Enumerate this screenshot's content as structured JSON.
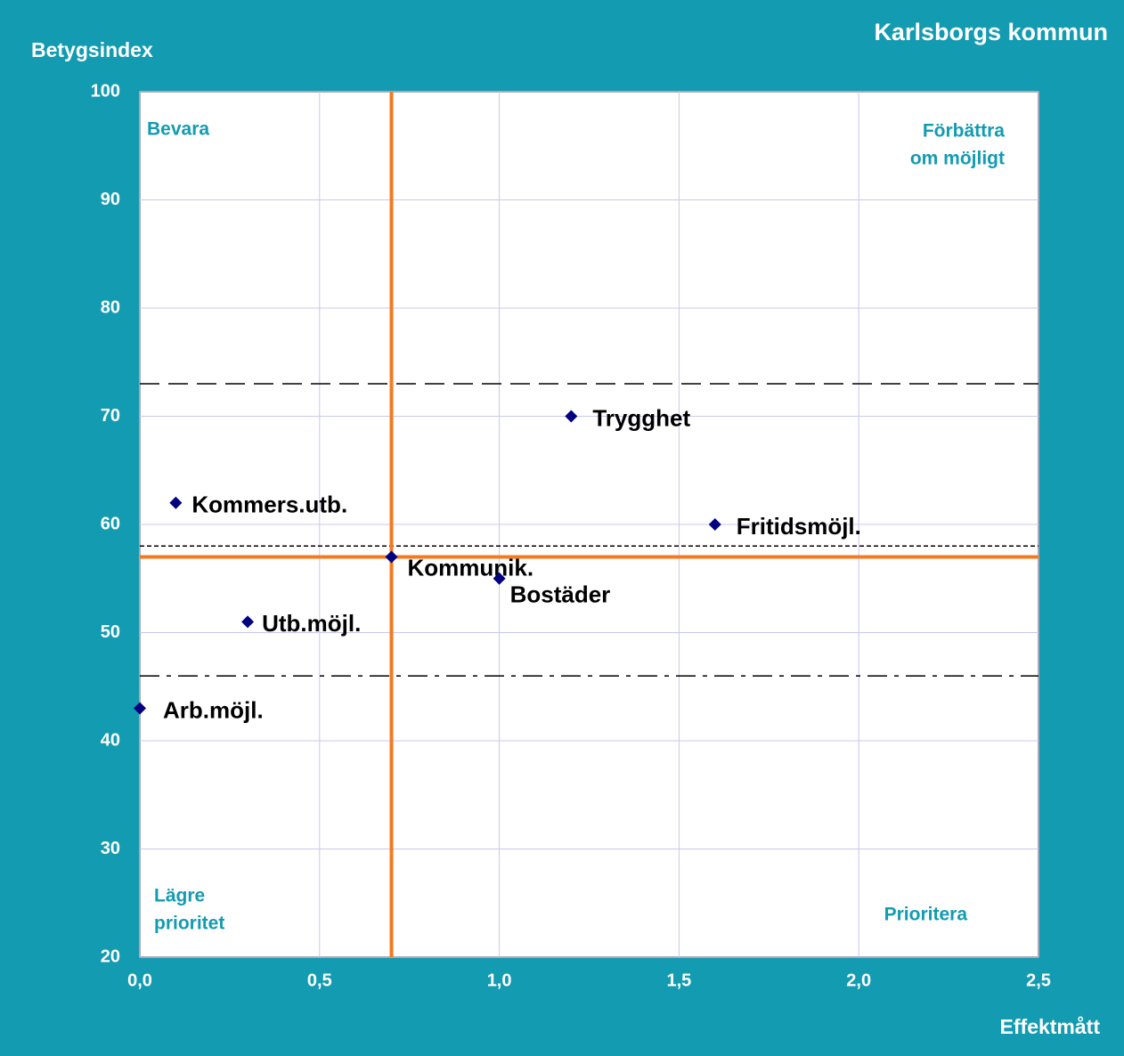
{
  "chart_data": {
    "type": "scatter",
    "title": "Karlsborgs kommun",
    "y_label": "Betygsindex",
    "x_label": "Effektmått",
    "labels": [
      "Arb.möjl.",
      "Kommers.utb.",
      "Utb.möjl.",
      "Kommunik.",
      "Bostäder",
      "Trygghet",
      "Fritidsmöjl."
    ],
    "x": [
      0.0,
      0.1,
      0.3,
      0.7,
      1.0,
      1.2,
      1.6
    ],
    "values": [
      43,
      62,
      51,
      57,
      55,
      70,
      60
    ],
    "color": "#000080",
    "xlim": [
      0,
      2.5
    ],
    "ylim": [
      20,
      100
    ],
    "xticks": [
      {
        "value": 0,
        "label": "0,0"
      },
      {
        "value": 0.5,
        "label": "0,5"
      },
      {
        "value": 1,
        "label": "1,0"
      },
      {
        "value": 1.5,
        "label": "1,5"
      },
      {
        "value": 2,
        "label": "2,0"
      },
      {
        "value": 2.5,
        "label": "2,5"
      }
    ],
    "yticks": [
      20,
      30,
      40,
      50,
      60,
      70,
      80,
      90,
      100
    ],
    "grid": true,
    "reference_lines": [
      {
        "axis": "y",
        "value": 73,
        "color": "#000000",
        "style": "dashed"
      },
      {
        "axis": "y",
        "value": 58,
        "color": "#000000",
        "style": "dotted"
      },
      {
        "axis": "y",
        "value": 46,
        "color": "#000000",
        "style": "dashdot"
      },
      {
        "axis": "x",
        "value": 0.7,
        "color": "#f47a20",
        "style": "solid"
      },
      {
        "axis": "y",
        "value": 57,
        "color": "#f47a20",
        "style": "solid"
      }
    ],
    "annotations": [
      {
        "corner": "top-left",
        "lines": [
          "Bevara"
        ]
      },
      {
        "corner": "top-right",
        "lines": [
          "Förbättra",
          "om möjligt"
        ]
      },
      {
        "corner": "bottom-left",
        "lines": [
          "Lägre",
          "prioritet"
        ]
      },
      {
        "corner": "bottom-right",
        "lines": [
          "Prioritera"
        ]
      }
    ]
  }
}
